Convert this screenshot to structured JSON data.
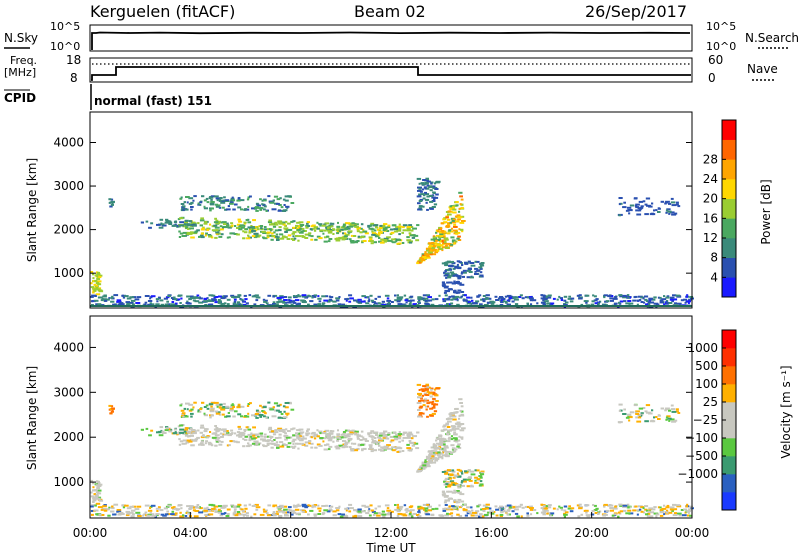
{
  "header": {
    "station": "Kerguelen (fitACF)",
    "beam": "Beam 02",
    "date": "26/Sep/2017"
  },
  "noise_panel": {
    "left_label": "N.Sky",
    "right_label": "N.Search",
    "left_ticks": [
      "10^5",
      "10^0"
    ],
    "right_ticks": [
      "10^5",
      "10^0"
    ]
  },
  "freq_panel": {
    "left_label": "Freq.",
    "left_unit": "[MHz]",
    "left_ticks": [
      "18",
      "8"
    ],
    "right_label": "Nave",
    "right_ticks": [
      "60",
      "0"
    ]
  },
  "cpid_panel": {
    "label": "CPID",
    "program": "normal (fast) 151"
  },
  "chart_data": [
    {
      "type": "heatmap",
      "name": "power",
      "ylabel": "Slant Range [km]",
      "yticks": [
        1000,
        2000,
        3000,
        4000
      ],
      "ylim": [
        200,
        4700
      ],
      "xlim": [
        0,
        24
      ],
      "colorbar_label": "Power [dB]",
      "colorbar_ticks": [
        "4",
        "8",
        "12",
        "16",
        "20",
        "24",
        "28"
      ],
      "colorbar_colors": [
        "#1a1aff",
        "#2a50b0",
        "#3a8a7a",
        "#4aa860",
        "#9acd32",
        "#ffd700",
        "#ffa500",
        "#ff6600",
        "#ff0000"
      ]
    },
    {
      "type": "heatmap",
      "name": "velocity",
      "ylabel": "Slant Range [km]",
      "yticks": [
        1000,
        2000,
        3000,
        4000
      ],
      "ylim": [
        200,
        4700
      ],
      "xlim": [
        0,
        24
      ],
      "xlabel": "Time UT",
      "xticks": [
        "00:00",
        "04:00",
        "08:00",
        "12:00",
        "16:00",
        "20:00",
        "00:00"
      ],
      "colorbar_label": "Velocity [m s⁻¹]",
      "colorbar_ticks": [
        "1000",
        "500",
        "100",
        "25",
        "−25",
        "−100",
        "−500",
        "−1000"
      ],
      "colorbar_colors": [
        "#1a3aff",
        "#2a60c0",
        "#3a9a70",
        "#5ac840",
        "#c8c8c0",
        "#c8c8c0",
        "#ffb000",
        "#ff7000",
        "#ff3000",
        "#ff0000"
      ]
    }
  ]
}
